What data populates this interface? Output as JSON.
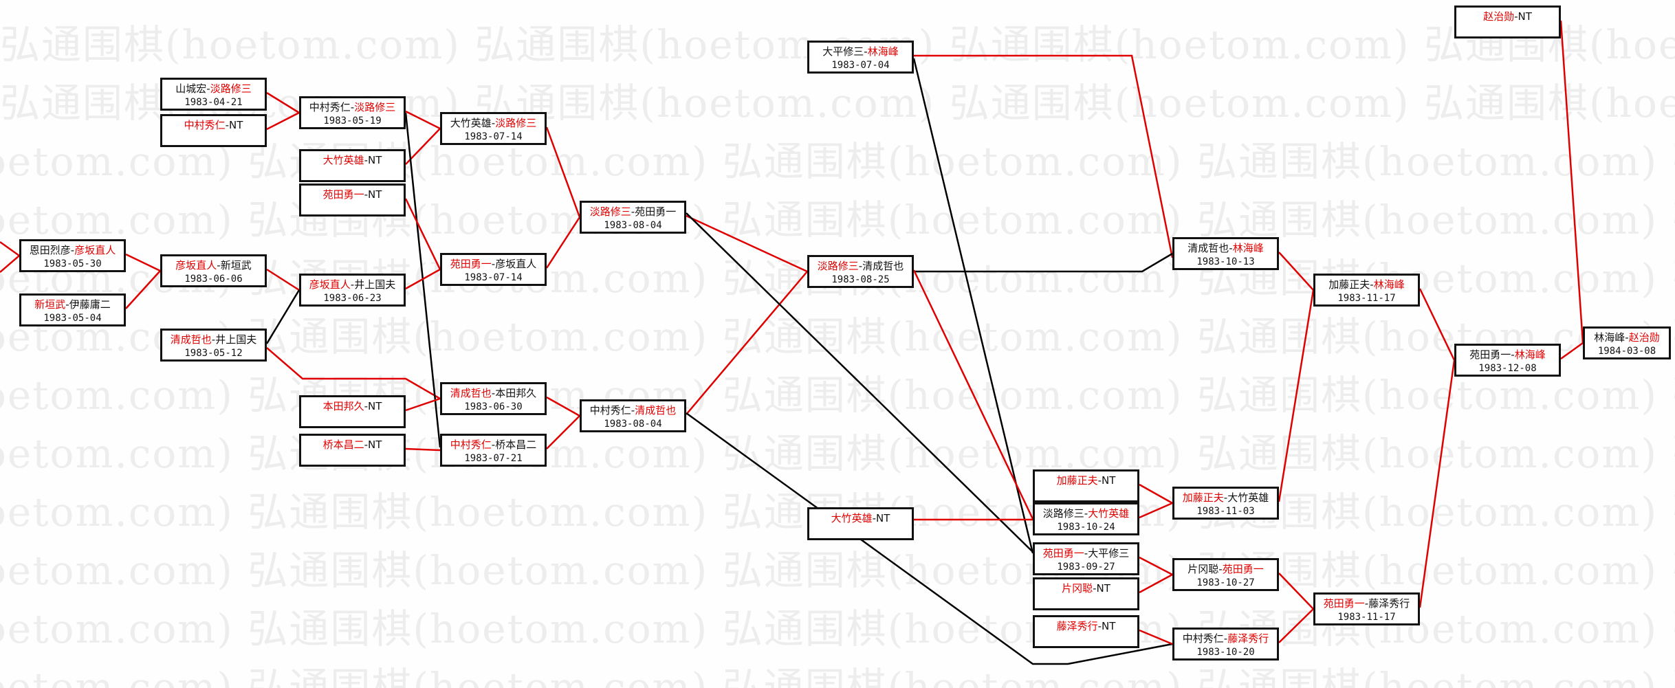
{
  "watermark": "弘通围棋(hoetom.com)",
  "separator": "-",
  "colors": {
    "win": "#e00000",
    "line_win": "#e00000",
    "line_loss": "#000000",
    "box_border": "#111111"
  },
  "boxes": [
    {
      "id": "A1",
      "players": [
        {
          "name": "恩田烈彦",
          "winner": false
        },
        {
          "name": "彦坂直人",
          "winner": true
        }
      ],
      "date": "1983-05-30"
    },
    {
      "id": "A2",
      "players": [
        {
          "name": "新垣武",
          "winner": true
        },
        {
          "name": "伊藤庸二",
          "winner": false
        }
      ],
      "date": "1983-05-04"
    },
    {
      "id": "B1",
      "players": [
        {
          "name": "山城宏",
          "winner": false
        },
        {
          "name": "淡路修三",
          "winner": true
        }
      ],
      "date": "1983-04-21"
    },
    {
      "id": "B2",
      "players": [
        {
          "name": "中村秀仁",
          "winner": true
        },
        {
          "name": "NT",
          "winner": false
        }
      ],
      "date": ""
    },
    {
      "id": "B3",
      "players": [
        {
          "name": "彦坂直人",
          "winner": true
        },
        {
          "name": "新垣武",
          "winner": false
        }
      ],
      "date": "1983-06-06"
    },
    {
      "id": "B4",
      "players": [
        {
          "name": "清成哲也",
          "winner": true
        },
        {
          "name": "井上国夫",
          "winner": false
        }
      ],
      "date": "1983-05-12"
    },
    {
      "id": "C1",
      "players": [
        {
          "name": "中村秀仁",
          "winner": false
        },
        {
          "name": "淡路修三",
          "winner": true
        }
      ],
      "date": "1983-05-19"
    },
    {
      "id": "C2",
      "players": [
        {
          "name": "大竹英雄",
          "winner": true
        },
        {
          "name": "NT",
          "winner": false
        }
      ],
      "date": ""
    },
    {
      "id": "C3",
      "players": [
        {
          "name": "苑田勇一",
          "winner": true
        },
        {
          "name": "NT",
          "winner": false
        }
      ],
      "date": ""
    },
    {
      "id": "C4",
      "players": [
        {
          "name": "彦坂直人",
          "winner": true
        },
        {
          "name": "井上国夫",
          "winner": false
        }
      ],
      "date": "1983-06-23"
    },
    {
      "id": "C5",
      "players": [
        {
          "name": "本田邦久",
          "winner": true
        },
        {
          "name": "NT",
          "winner": false
        }
      ],
      "date": ""
    },
    {
      "id": "C6",
      "players": [
        {
          "name": "桥本昌二",
          "winner": true
        },
        {
          "name": "NT",
          "winner": false
        }
      ],
      "date": ""
    },
    {
      "id": "D1",
      "players": [
        {
          "name": "大竹英雄",
          "winner": false
        },
        {
          "name": "淡路修三",
          "winner": true
        }
      ],
      "date": "1983-07-14"
    },
    {
      "id": "D2",
      "players": [
        {
          "name": "苑田勇一",
          "winner": true
        },
        {
          "name": "彦坂直人",
          "winner": false
        }
      ],
      "date": "1983-07-14"
    },
    {
      "id": "D3",
      "players": [
        {
          "name": "清成哲也",
          "winner": true
        },
        {
          "name": "本田邦久",
          "winner": false
        }
      ],
      "date": "1983-06-30"
    },
    {
      "id": "D4",
      "players": [
        {
          "name": "中村秀仁",
          "winner": true
        },
        {
          "name": "桥本昌二",
          "winner": false
        }
      ],
      "date": "1983-07-21"
    },
    {
      "id": "E1",
      "players": [
        {
          "name": "淡路修三",
          "winner": true
        },
        {
          "name": "苑田勇一",
          "winner": false
        }
      ],
      "date": "1983-08-04"
    },
    {
      "id": "E2",
      "players": [
        {
          "name": "中村秀仁",
          "winner": false
        },
        {
          "name": "清成哲也",
          "winner": true
        }
      ],
      "date": "1983-08-04"
    },
    {
      "id": "F1",
      "players": [
        {
          "name": "大平修三",
          "winner": false
        },
        {
          "name": "林海峰",
          "winner": true
        }
      ],
      "date": "1983-07-04"
    },
    {
      "id": "F2",
      "players": [
        {
          "name": "淡路修三",
          "winner": true
        },
        {
          "name": "清成哲也",
          "winner": false
        }
      ],
      "date": "1983-08-25"
    },
    {
      "id": "F3",
      "players": [
        {
          "name": "大竹英雄",
          "winner": true
        },
        {
          "name": "NT",
          "winner": false
        }
      ],
      "date": ""
    },
    {
      "id": "G1",
      "players": [
        {
          "name": "加藤正夫",
          "winner": true
        },
        {
          "name": "NT",
          "winner": false
        }
      ],
      "date": ""
    },
    {
      "id": "G2",
      "players": [
        {
          "name": "淡路修三",
          "winner": false
        },
        {
          "name": "大竹英雄",
          "winner": true
        }
      ],
      "date": "1983-10-24"
    },
    {
      "id": "G3",
      "players": [
        {
          "name": "苑田勇一",
          "winner": true
        },
        {
          "name": "大平修三",
          "winner": false
        }
      ],
      "date": "1983-09-27"
    },
    {
      "id": "G4",
      "players": [
        {
          "name": "片冈聪",
          "winner": true
        },
        {
          "name": "NT",
          "winner": false
        }
      ],
      "date": ""
    },
    {
      "id": "G5",
      "players": [
        {
          "name": "藤泽秀行",
          "winner": true
        },
        {
          "name": "NT",
          "winner": false
        }
      ],
      "date": ""
    },
    {
      "id": "H1",
      "players": [
        {
          "name": "清成哲也",
          "winner": false
        },
        {
          "name": "林海峰",
          "winner": true
        }
      ],
      "date": "1983-10-13"
    },
    {
      "id": "H2",
      "players": [
        {
          "name": "加藤正夫",
          "winner": true
        },
        {
          "name": "大竹英雄",
          "winner": false
        }
      ],
      "date": "1983-11-03"
    },
    {
      "id": "H3",
      "players": [
        {
          "name": "片冈聪",
          "winner": false
        },
        {
          "name": "苑田勇一",
          "winner": true
        }
      ],
      "date": "1983-10-27"
    },
    {
      "id": "H4",
      "players": [
        {
          "name": "中村秀仁",
          "winner": false
        },
        {
          "name": "藤泽秀行",
          "winner": true
        }
      ],
      "date": "1983-10-20"
    },
    {
      "id": "I1",
      "players": [
        {
          "name": "加藤正夫",
          "winner": false
        },
        {
          "name": "林海峰",
          "winner": true
        }
      ],
      "date": "1983-11-17"
    },
    {
      "id": "I2",
      "players": [
        {
          "name": "苑田勇一",
          "winner": true
        },
        {
          "name": "藤泽秀行",
          "winner": false
        }
      ],
      "date": "1983-11-17"
    },
    {
      "id": "J1",
      "players": [
        {
          "name": "赵治勋",
          "winner": true
        },
        {
          "name": "NT",
          "winner": false
        }
      ],
      "date": ""
    },
    {
      "id": "J2",
      "players": [
        {
          "name": "苑田勇一",
          "winner": false
        },
        {
          "name": "林海峰",
          "winner": true
        }
      ],
      "date": "1983-12-08"
    },
    {
      "id": "K1",
      "players": [
        {
          "name": "林海峰",
          "winner": false
        },
        {
          "name": "赵治勋",
          "winner": true
        }
      ],
      "date": "1984-03-08"
    }
  ],
  "edges": [
    {
      "from": "A1",
      "to": "B3",
      "result": "win"
    },
    {
      "from": "A2",
      "to": "B3",
      "result": "win"
    },
    {
      "from": "B1",
      "to": "C1",
      "result": "win"
    },
    {
      "from": "B2",
      "to": "C1",
      "result": "win"
    },
    {
      "from": "B3",
      "to": "C4",
      "result": "win"
    },
    {
      "from": "B4",
      "to": "C4",
      "result": "loss"
    },
    {
      "from": "B4",
      "to": "D3",
      "result": "win"
    },
    {
      "from": "C1",
      "to": "D1",
      "result": "win"
    },
    {
      "from": "C2",
      "to": "D1",
      "result": "win"
    },
    {
      "from": "C1",
      "to": "D4",
      "result": "loss"
    },
    {
      "from": "C3",
      "to": "D2",
      "result": "win"
    },
    {
      "from": "C4",
      "to": "D2",
      "result": "win"
    },
    {
      "from": "C5",
      "to": "D3",
      "result": "win"
    },
    {
      "from": "C6",
      "to": "D4",
      "result": "win"
    },
    {
      "from": "D1",
      "to": "E1",
      "result": "win"
    },
    {
      "from": "D2",
      "to": "E1",
      "result": "win"
    },
    {
      "from": "D3",
      "to": "E2",
      "result": "win"
    },
    {
      "from": "D4",
      "to": "E2",
      "result": "win"
    },
    {
      "from": "E1",
      "to": "F2",
      "result": "win"
    },
    {
      "from": "E2",
      "to": "F2",
      "result": "win"
    },
    {
      "from": "E1",
      "to": "G3",
      "result": "loss"
    },
    {
      "from": "E2",
      "to": "H4",
      "result": "loss"
    },
    {
      "from": "F1",
      "to": "H1",
      "result": "win"
    },
    {
      "from": "F2",
      "to": "H1",
      "result": "loss"
    },
    {
      "from": "F1",
      "to": "G3",
      "result": "loss"
    },
    {
      "from": "F2",
      "to": "G2",
      "result": "win"
    },
    {
      "from": "F3",
      "to": "G2",
      "result": "win"
    },
    {
      "from": "G1",
      "to": "H2",
      "result": "win"
    },
    {
      "from": "G2",
      "to": "H2",
      "result": "win"
    },
    {
      "from": "G3",
      "to": "H3",
      "result": "win"
    },
    {
      "from": "G4",
      "to": "H3",
      "result": "win"
    },
    {
      "from": "G5",
      "to": "H4",
      "result": "win"
    },
    {
      "from": "H1",
      "to": "I1",
      "result": "win"
    },
    {
      "from": "H2",
      "to": "I1",
      "result": "win"
    },
    {
      "from": "H3",
      "to": "I2",
      "result": "win"
    },
    {
      "from": "H4",
      "to": "I2",
      "result": "win"
    },
    {
      "from": "I1",
      "to": "J2",
      "result": "win"
    },
    {
      "from": "I2",
      "to": "J2",
      "result": "win"
    },
    {
      "from": "J1",
      "to": "K1",
      "result": "win"
    },
    {
      "from": "J2",
      "to": "K1",
      "result": "win"
    }
  ]
}
